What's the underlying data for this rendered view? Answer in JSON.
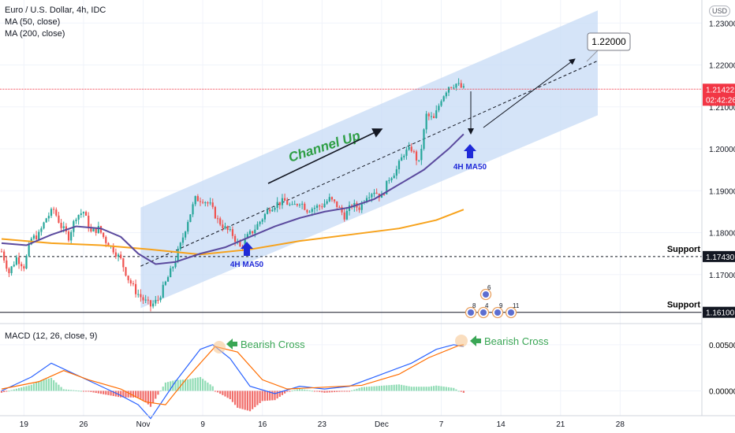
{
  "header": {
    "symbol_line": "Euro / U.S. Dollar, 4h, IDC",
    "ma50_label": "MA (50, close)",
    "ma200_label": "MA (200, close)",
    "currency_badge": "USD"
  },
  "macd": {
    "label": "MACD (12, 26, close, 9)",
    "y_ticks": [
      "0.00500",
      "0.00000"
    ],
    "annotations": [
      "Bearish Cross",
      "Bearish Cross"
    ]
  },
  "chart_data": {
    "type": "candlestick",
    "symbol": "EURUSD",
    "timeframe": "4h",
    "x_tick_labels": [
      "19",
      "26",
      "Nov",
      "9",
      "16",
      "23",
      "Dec",
      "7",
      "14",
      "21",
      "28"
    ],
    "y_tick_labels": [
      "1.23000",
      "1.22000",
      "1.21000",
      "1.20000",
      "1.19000",
      "1.18000",
      "1.17000"
    ],
    "ylim": [
      1.1585,
      1.2355
    ],
    "price_path": [
      [
        0,
        1.1755
      ],
      [
        3,
        1.1705
      ],
      [
        6,
        1.174
      ],
      [
        9,
        1.172
      ],
      [
        12,
        1.1785
      ],
      [
        15,
        1.1795
      ],
      [
        18,
        1.1835
      ],
      [
        21,
        1.1855
      ],
      [
        24,
        1.1815
      ],
      [
        27,
        1.179
      ],
      [
        30,
        1.184
      ],
      [
        33,
        1.185
      ],
      [
        36,
        1.18
      ],
      [
        39,
        1.181
      ],
      [
        42,
        1.178
      ],
      [
        45,
        1.176
      ],
      [
        48,
        1.1735
      ],
      [
        51,
        1.169
      ],
      [
        54,
        1.166
      ],
      [
        57,
        1.164
      ],
      [
        60,
        1.1625
      ],
      [
        63,
        1.164
      ],
      [
        66,
        1.168
      ],
      [
        69,
        1.172
      ],
      [
        72,
        1.177
      ],
      [
        75,
        1.183
      ],
      [
        78,
        1.188
      ],
      [
        81,
        1.188
      ],
      [
        84,
        1.1865
      ],
      [
        87,
        1.183
      ],
      [
        90,
        1.181
      ],
      [
        93,
        1.1795
      ],
      [
        96,
        1.1765
      ],
      [
        99,
        1.179
      ],
      [
        102,
        1.181
      ],
      [
        105,
        1.1835
      ],
      [
        108,
        1.186
      ],
      [
        111,
        1.187
      ],
      [
        114,
        1.1875
      ],
      [
        117,
        1.186
      ],
      [
        120,
        1.1875
      ],
      [
        123,
        1.1855
      ],
      [
        126,
        1.186
      ],
      [
        129,
        1.1865
      ],
      [
        132,
        1.188
      ],
      [
        135,
        1.1865
      ],
      [
        138,
        1.184
      ],
      [
        141,
        1.1865
      ],
      [
        144,
        1.186
      ],
      [
        147,
        1.189
      ],
      [
        150,
        1.19
      ],
      [
        153,
        1.1885
      ],
      [
        156,
        1.193
      ],
      [
        159,
        1.195
      ],
      [
        162,
        1.199
      ],
      [
        165,
        1.2
      ],
      [
        168,
        1.1965
      ],
      [
        171,
        1.208
      ],
      [
        174,
        1.207
      ],
      [
        177,
        1.212
      ],
      [
        180,
        1.215
      ],
      [
        183,
        1.2155
      ],
      [
        186,
        1.2142
      ]
    ],
    "series": [
      {
        "name": "MA (50, close)",
        "color": "#5b4a9e",
        "values": [
          [
            0,
            1.1775
          ],
          [
            10,
            1.177
          ],
          [
            20,
            1.1795
          ],
          [
            30,
            1.1815
          ],
          [
            40,
            1.181
          ],
          [
            48,
            1.179
          ],
          [
            55,
            1.175
          ],
          [
            62,
            1.1725
          ],
          [
            70,
            1.173
          ],
          [
            80,
            1.175
          ],
          [
            90,
            1.1765
          ],
          [
            100,
            1.179
          ],
          [
            110,
            1.1815
          ],
          [
            120,
            1.1835
          ],
          [
            130,
            1.185
          ],
          [
            140,
            1.186
          ],
          [
            150,
            1.188
          ],
          [
            160,
            1.1915
          ],
          [
            170,
            1.195
          ],
          [
            180,
            1.2
          ],
          [
            186,
            1.2035
          ]
        ]
      },
      {
        "name": "MA (200, close)",
        "color": "#f7a21b",
        "values": [
          [
            0,
            1.1785
          ],
          [
            20,
            1.1775
          ],
          [
            40,
            1.177
          ],
          [
            60,
            1.176
          ],
          [
            80,
            1.1748
          ],
          [
            100,
            1.176
          ],
          [
            120,
            1.178
          ],
          [
            140,
            1.1795
          ],
          [
            160,
            1.181
          ],
          [
            175,
            1.183
          ],
          [
            186,
            1.1855
          ]
        ]
      }
    ],
    "channel": {
      "lower": [
        [
          56,
          1.162
        ],
        [
          240,
          1.208
        ]
      ],
      "upper": [
        [
          56,
          1.186
        ],
        [
          240,
          1.233
        ]
      ]
    },
    "midline": [
      [
        56,
        1.172
      ],
      [
        240,
        1.221
      ]
    ],
    "support_levels": [
      {
        "label": "Support",
        "value": 1.1743,
        "price_label": "1.17430",
        "style": "dashed"
      },
      {
        "label": "Support",
        "value": 1.161,
        "price_label": "1.16100",
        "style": "solid"
      }
    ],
    "current_price": {
      "value": 1.21422,
      "label": "1.21422",
      "countdown": "02:42:26"
    },
    "target": {
      "value": 1.22,
      "label": "1.22000"
    },
    "annotations": [
      "Channel Up",
      "4H MA50",
      "4H MA50"
    ],
    "event_flags": [
      "6",
      "8",
      "4",
      "9",
      "11"
    ],
    "macd_series": {
      "macd": [
        [
          0,
          0.0
        ],
        [
          12,
          0.0015
        ],
        [
          20,
          0.003
        ],
        [
          28,
          0.002
        ],
        [
          40,
          0.0005
        ],
        [
          48,
          -0.0005
        ],
        [
          55,
          -0.0015
        ],
        [
          60,
          -0.003
        ],
        [
          70,
          0.001
        ],
        [
          80,
          0.0045
        ],
        [
          85,
          0.005
        ],
        [
          92,
          0.0035
        ],
        [
          100,
          0.0005
        ],
        [
          110,
          -0.0003
        ],
        [
          120,
          0.0005
        ],
        [
          130,
          0.0002
        ],
        [
          140,
          0.0005
        ],
        [
          150,
          0.0015
        ],
        [
          165,
          0.003
        ],
        [
          175,
          0.0045
        ],
        [
          182,
          0.005
        ],
        [
          186,
          0.0048
        ]
      ],
      "signal": [
        [
          0,
          0.0002
        ],
        [
          15,
          0.001
        ],
        [
          25,
          0.0022
        ],
        [
          35,
          0.0012
        ],
        [
          48,
          0.0002
        ],
        [
          58,
          -0.0012
        ],
        [
          66,
          -0.0015
        ],
        [
          75,
          0.0015
        ],
        [
          86,
          0.0048
        ],
        [
          95,
          0.0042
        ],
        [
          105,
          0.0012
        ],
        [
          115,
          0.0002
        ],
        [
          130,
          0.0004
        ],
        [
          145,
          0.0006
        ],
        [
          160,
          0.0018
        ],
        [
          172,
          0.0036
        ],
        [
          184,
          0.0049
        ],
        [
          186,
          0.005
        ]
      ],
      "ylim": [
        -0.0026,
        0.0072
      ]
    }
  }
}
